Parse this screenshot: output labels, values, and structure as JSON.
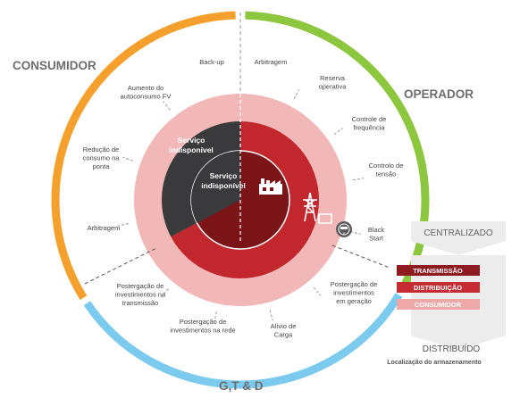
{
  "labels": {
    "consumidor": "CONSUMIDOR",
    "operador": "OPERADOR",
    "gtd": "G,T & D"
  },
  "inner": {
    "servico_outer": [
      "Serviço",
      "indisponível"
    ],
    "servico_inner": [
      "Serviço",
      "indisponível"
    ]
  },
  "services": {
    "backup": [
      "Back-up"
    ],
    "arbitragem_top": [
      "Arbitragem"
    ],
    "reserva": [
      "Reserva",
      "operativa"
    ],
    "freq": [
      "Controle de",
      "frequência"
    ],
    "tensao": [
      "Controlo de",
      "tensão"
    ],
    "black": [
      "Black",
      "Start"
    ],
    "invest_ger": [
      "Postergação de",
      "investimentos",
      "em geração"
    ],
    "alivio": [
      "Alívio de",
      "Carga"
    ],
    "invest_rede": [
      "Postergação de",
      "investimentos na rede"
    ],
    "invest_trans": [
      "Postergação de",
      "investimentos na",
      "transmissão"
    ],
    "arbitragem_left": [
      "Arbitragem"
    ],
    "reducao": [
      "Redução de",
      "consumo na",
      "ponta"
    ],
    "aumento": [
      "Aumento do",
      "autoconsumo FV"
    ]
  },
  "legend": {
    "centralizado": "CENTRALIZADO",
    "transmissao": "TRANSMISSÃO",
    "distribuicao": "DISTRIBUIÇÃO",
    "consumidor": "CONSUMIDOR",
    "distribuido": "DISTRIBUÍDO",
    "localizacao": "Localização do armazenamento"
  },
  "colors": {
    "orange": "#F5A02C",
    "green": "#8DC63F",
    "blue": "#7CCBEF",
    "pink": "#F2B8B8",
    "dark": "#3A3A3C",
    "red": "#C1272D",
    "darkred": "#7B1518",
    "legend_dark": "#8E1B20",
    "legend_mid": "#C62D33",
    "legend_light": "#EFA8A8"
  },
  "icons": [
    "factory-icon",
    "transmission-tower-icon",
    "meter-icon"
  ]
}
